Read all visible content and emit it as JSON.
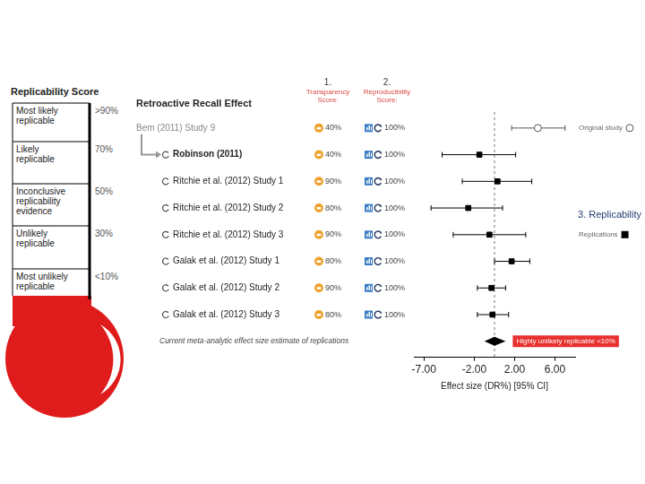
{
  "chart_data": {
    "type": "forest",
    "title": "Retroactive Recall Effect",
    "columns": [
      {
        "number": "1.",
        "label": "Transparency Score:"
      },
      {
        "number": "2.",
        "label": "Reproducibility Score:"
      }
    ],
    "annotation": "3. Replicability",
    "series": [
      {
        "name": "Original study",
        "color": "#555555",
        "marker": "open_circle",
        "studies": [
          {
            "label": "Bem (2011) Study 9",
            "transparency": "40%",
            "reproducibility": "100%",
            "effect": 4.3,
            "ci": [
              1.7,
              7.0
            ]
          }
        ]
      },
      {
        "name": "Replications",
        "color": "#000000",
        "marker": "square",
        "studies": [
          {
            "label": "Robinson (2011)",
            "transparency": "40%",
            "reproducibility": "100%",
            "effect": -1.5,
            "ci": [
              -5.2,
              2.1
            ]
          },
          {
            "label": "Ritchie et al. (2012) Study 1",
            "transparency": "90%",
            "reproducibility": "100%",
            "effect": 0.3,
            "ci": [
              -3.2,
              3.7
            ]
          },
          {
            "label": "Ritchie et al. (2012) Study 2",
            "transparency": "80%",
            "reproducibility": "100%",
            "effect": -2.6,
            "ci": [
              -6.3,
              0.8
            ]
          },
          {
            "label": "Ritchie et al. (2012) Study 3",
            "transparency": "90%",
            "reproducibility": "100%",
            "effect": -0.5,
            "ci": [
              -4.1,
              3.1
            ]
          },
          {
            "label": "Galak et al. (2012) Study 1",
            "transparency": "80%",
            "reproducibility": "100%",
            "effect": 1.7,
            "ci": [
              0.0,
              3.5
            ]
          },
          {
            "label": "Galak et al. (2012) Study 2",
            "transparency": "90%",
            "reproducibility": "100%",
            "effect": -0.3,
            "ci": [
              -1.7,
              1.1
            ]
          },
          {
            "label": "Galak et al. (2012) Study 3",
            "transparency": "80%",
            "reproducibility": "100%",
            "effect": -0.2,
            "ci": [
              -1.7,
              1.4
            ]
          }
        ]
      }
    ],
    "summary": {
      "label": "Current meta-analytic effect size estimate of replications",
      "effect": 0.0,
      "ci": [
        -1.0,
        1.1
      ],
      "verdict": "Highly unlikely replicable <10%"
    },
    "x_label": "Effect size (DR%) [95% CI]",
    "xlim": [
      -8,
      8
    ],
    "xticks": [
      {
        "value": -7,
        "label": "-7.00"
      },
      {
        "value": -2,
        "label": "-2.00"
      },
      {
        "value": 2,
        "label": "2.00"
      },
      {
        "value": 6,
        "label": "6.00"
      }
    ],
    "reference_line": 0,
    "legend": "right",
    "tick_labels": "x",
    "grid": false
  },
  "replicability_score": {
    "title": "Replicability Score",
    "levels": [
      {
        "label": "Most likely replicable",
        "score": ">90%"
      },
      {
        "label": "Likely replicable",
        "score": "70%"
      },
      {
        "label": "Inconclusive replicability evidence",
        "score": "50%"
      },
      {
        "label": "Unlikely replicable",
        "score": "30%"
      },
      {
        "label": "Most unlikely replicable",
        "score": "<10%"
      }
    ]
  }
}
